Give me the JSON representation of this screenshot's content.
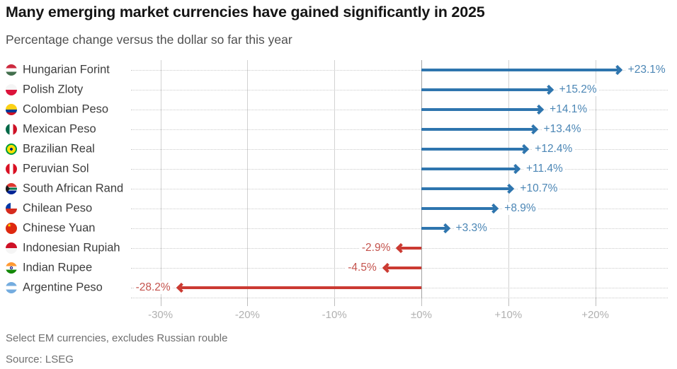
{
  "chart_data": {
    "type": "bar",
    "orientation": "horizontal-arrow",
    "title": "Many emerging market currencies have gained significantly in 2025",
    "subtitle": "Percentage change versus the dollar so far this year",
    "categories": [
      "Hungarian Forint",
      "Polish Zloty",
      "Colombian Peso",
      "Mexican Peso",
      "Brazilian Real",
      "Peruvian Sol",
      "South African Rand",
      "Chilean Peso",
      "Chinese Yuan",
      "Indonesian Rupiah",
      "Indian Rupee",
      "Argentine Peso"
    ],
    "values": [
      23.1,
      15.2,
      14.1,
      13.4,
      12.4,
      11.4,
      10.7,
      8.9,
      3.3,
      -2.9,
      -4.5,
      -28.2
    ],
    "value_labels": [
      "+23.1%",
      "+15.2%",
      "+14.1%",
      "+13.4%",
      "+12.4%",
      "+11.4%",
      "+10.7%",
      "+8.9%",
      "+3.3%",
      "-2.9%",
      "-4.5%",
      "-28.2%"
    ],
    "flags": [
      "hungary",
      "poland",
      "colombia",
      "mexico",
      "brazil",
      "peru",
      "south-africa",
      "chile",
      "china",
      "indonesia",
      "india",
      "argentina"
    ],
    "x_tick_values": [
      -30,
      -20,
      -10,
      0,
      10,
      20
    ],
    "x_tick_labels": [
      "-30%",
      "-20%",
      "-10%",
      "±0%",
      "+10%",
      "+20%"
    ],
    "xlim": [
      -33.4,
      28.5
    ],
    "xlabel": "",
    "ylabel": "",
    "legend": "none",
    "grid": "vertical solid gridlines with dotted horizontal row leader lines",
    "positive_color": "#2e75ae",
    "negative_color": "#cb3a32",
    "positive_label_color": "#4b86b5",
    "negative_label_color": "#c4534d"
  },
  "notes": {
    "footnote": "Select EM currencies, excludes Russian rouble",
    "source": "Source: LSEG"
  }
}
